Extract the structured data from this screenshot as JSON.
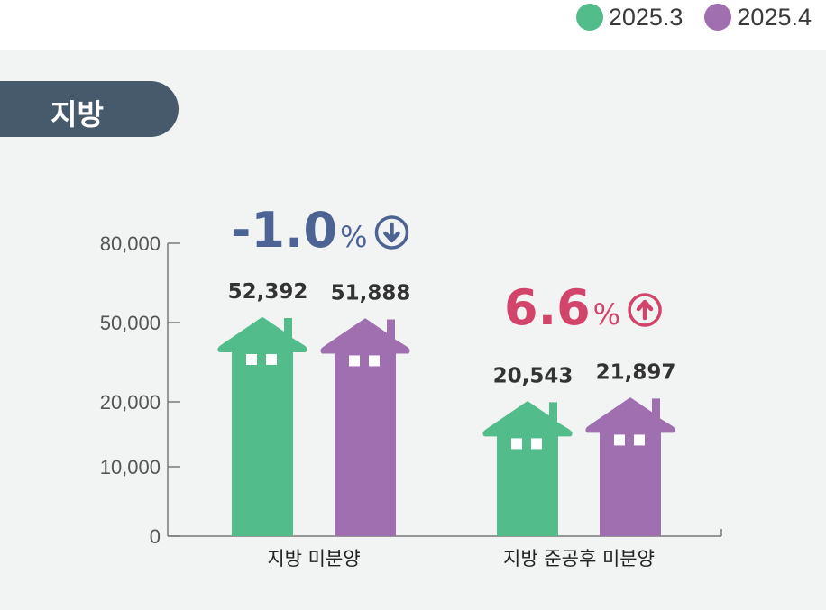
{
  "legend": [
    {
      "label": "2025.3",
      "color": "#52bd8a"
    },
    {
      "label": "2025.4",
      "color": "#a06fb0"
    }
  ],
  "region_label": "지방",
  "chart_data": {
    "type": "bar",
    "categories": [
      "지방 미분양",
      "지방 준공후 미분양"
    ],
    "series": [
      {
        "name": "2025.3",
        "values": [
          52392,
          20543
        ],
        "color": "#52bd8a"
      },
      {
        "name": "2025.4",
        "values": [
          51888,
          21897
        ],
        "color": "#a06fb0"
      }
    ],
    "value_labels": [
      [
        "52,392",
        "20,543"
      ],
      [
        "51,888",
        "21,897"
      ]
    ],
    "yticks": [
      0,
      10000,
      20000,
      50000,
      80000
    ],
    "ytick_labels": [
      "0",
      "10,000",
      "20,000",
      "50,000",
      "80,000"
    ],
    "changes": [
      {
        "value": "-1.0",
        "unit": "%",
        "direction": "down",
        "color": "#4d6393"
      },
      {
        "value": "6.6",
        "unit": "%",
        "direction": "up",
        "color": "#d2446a"
      }
    ],
    "xlabel": "",
    "ylabel": ""
  }
}
